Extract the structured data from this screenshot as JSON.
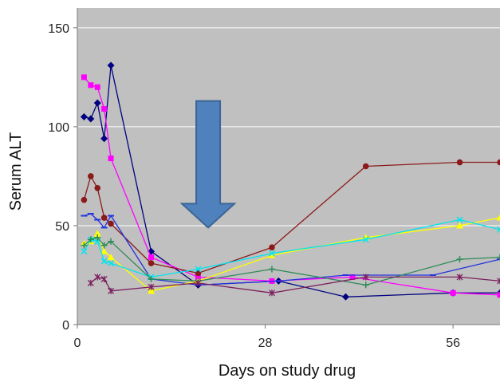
{
  "chart_data": {
    "type": "line",
    "title": "",
    "xlabel": "Days on study drug",
    "ylabel": "Serum ALT",
    "xlim": [
      0,
      63
    ],
    "ylim": [
      0,
      160
    ],
    "x_ticks": [
      0,
      28,
      56
    ],
    "y_ticks": [
      0,
      50,
      100,
      150
    ],
    "grid": "horizontal",
    "background": "#c0c0c0",
    "annotation": {
      "type": "down-arrow",
      "x": 19.5,
      "y_top": 113,
      "y_bottom": 49,
      "color": "#4f81bd"
    },
    "series": [
      {
        "color": "#000080",
        "marker": "diamond",
        "points": [
          [
            1,
            105
          ],
          [
            2,
            104
          ],
          [
            3,
            112
          ],
          [
            4,
            94
          ],
          [
            5,
            131
          ],
          [
            11,
            37
          ],
          [
            18,
            20
          ],
          [
            30,
            22
          ],
          [
            40,
            14
          ],
          [
            56,
            16
          ],
          [
            63,
            16
          ]
        ]
      },
      {
        "color": "#ff00ff",
        "marker": "square",
        "points": [
          [
            1,
            125
          ],
          [
            2,
            121
          ],
          [
            3,
            120
          ],
          [
            4,
            109
          ],
          [
            5,
            84
          ],
          [
            11,
            34
          ],
          [
            18,
            24
          ],
          [
            29,
            22
          ],
          [
            41,
            24
          ],
          [
            56,
            16
          ],
          [
            63,
            15
          ]
        ]
      },
      {
        "color": "#8b1a1a",
        "marker": "circle",
        "points": [
          [
            1,
            63
          ],
          [
            2,
            75
          ],
          [
            3,
            69
          ],
          [
            4,
            54
          ],
          [
            5,
            51
          ],
          [
            11,
            31
          ],
          [
            18,
            26
          ],
          [
            29,
            39
          ],
          [
            43,
            80
          ],
          [
            57,
            82
          ],
          [
            63,
            82
          ]
        ]
      },
      {
        "color": "#2233dd",
        "marker": "dash",
        "points": [
          [
            1,
            55
          ],
          [
            2,
            56
          ],
          [
            3,
            53
          ],
          [
            4,
            49
          ],
          [
            5,
            55
          ],
          [
            11,
            23
          ],
          [
            18,
            20
          ],
          [
            30,
            22
          ],
          [
            40,
            25
          ],
          [
            53,
            25
          ],
          [
            63,
            33
          ]
        ]
      },
      {
        "color": "#ffff00",
        "marker": "triangle",
        "points": [
          [
            1,
            41
          ],
          [
            2,
            42
          ],
          [
            3,
            46
          ],
          [
            4,
            37
          ],
          [
            5,
            34
          ],
          [
            11,
            17
          ],
          [
            18,
            22
          ],
          [
            29,
            35
          ],
          [
            43,
            44
          ],
          [
            57,
            50
          ],
          [
            63,
            54
          ]
        ]
      },
      {
        "color": "#00e5ee",
        "marker": "x",
        "points": [
          [
            1,
            37
          ],
          [
            2,
            43
          ],
          [
            3,
            42
          ],
          [
            4,
            32
          ],
          [
            5,
            31
          ],
          [
            11,
            24
          ],
          [
            18,
            28
          ],
          [
            29,
            36
          ],
          [
            43,
            43
          ],
          [
            57,
            53
          ],
          [
            63,
            48
          ]
        ]
      },
      {
        "color": "#2e8b57",
        "marker": "plus",
        "points": [
          [
            1,
            40
          ],
          [
            2,
            43
          ],
          [
            3,
            44
          ],
          [
            4,
            40
          ],
          [
            5,
            42
          ],
          [
            11,
            23
          ],
          [
            18,
            22
          ],
          [
            29,
            28
          ],
          [
            43,
            20
          ],
          [
            57,
            33
          ],
          [
            63,
            34
          ]
        ]
      },
      {
        "color": "#7b1f5e",
        "marker": "star",
        "points": [
          [
            2,
            21
          ],
          [
            3,
            24
          ],
          [
            4,
            23
          ],
          [
            5,
            17
          ],
          [
            11,
            19
          ],
          [
            18,
            21
          ],
          [
            29,
            16
          ],
          [
            43,
            24
          ],
          [
            57,
            24
          ],
          [
            63,
            22
          ]
        ]
      }
    ]
  }
}
